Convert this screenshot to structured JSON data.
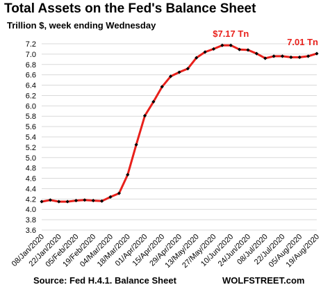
{
  "header": {
    "title": "Total Assets on the Fed's Balance Sheet",
    "subtitle": "Trillion $, week ending Wednesday"
  },
  "footer": {
    "source": "Source: Fed H.4.1. Balance Sheet",
    "brand": "WOLFSTREET.com"
  },
  "colors": {
    "line": "#e8201b",
    "marker": "#000000",
    "annotation": "#e8201b",
    "grid": "#d9d9d9",
    "text": "#000000"
  },
  "chart_data": {
    "type": "line",
    "title": "Total Assets on the Fed's Balance Sheet",
    "subtitle": "Trillion $, week ending Wednesday",
    "xlabel": "",
    "ylabel": "",
    "ylim": [
      3.6,
      7.2
    ],
    "yticks": [
      "3.6",
      "3.8",
      "4.0",
      "4.2",
      "4.4",
      "4.6",
      "4.8",
      "5.0",
      "5.2",
      "5.4",
      "5.6",
      "5.8",
      "6.0",
      "6.2",
      "6.4",
      "6.6",
      "6.8",
      "7.0",
      "7.2"
    ],
    "grid": true,
    "legend": "none",
    "x": [
      "08/Jan/2020",
      "15/Jan/2020",
      "22/Jan/2020",
      "29/Jan/2020",
      "05/Feb/2020",
      "12/Feb/2020",
      "19/Feb/2020",
      "26/Feb/2020",
      "04/Mar/2020",
      "11/Mar/2020",
      "18/Mar/2020",
      "25/Mar/2020",
      "01/Apr/2020",
      "08/Apr/2020",
      "15/Apr/2020",
      "22/Apr/2020",
      "29/Apr/2020",
      "06/May/2020",
      "13/May/2020",
      "20/May/2020",
      "27/May/2020",
      "03/Jun/2020",
      "10/Jun/2020",
      "17/Jun/2020",
      "24/Jun/2020",
      "01/Jul/2020",
      "08/Jul/2020",
      "15/Jul/2020",
      "22/Jul/2020",
      "29/Jul/2020",
      "05/Aug/2020",
      "12/Aug/2020",
      "19/Aug/2020"
    ],
    "x_tick_labels": [
      "08/Jan/2020",
      "22/Jan/2020",
      "05/Feb/2020",
      "19/Feb/2020",
      "04/Mar/2020",
      "18/Mar/2020",
      "01/Apr/2020",
      "15/Apr/2020",
      "29/Apr/2020",
      "13/May/2020",
      "27/May/2020",
      "10/Jun/2020",
      "24/Jun/2020",
      "08/Jul/2020",
      "22/Jul/2020",
      "05/Aug/2020",
      "19/Aug/2020"
    ],
    "series": [
      {
        "values": [
          4.15,
          4.18,
          4.15,
          4.15,
          4.17,
          4.18,
          4.17,
          4.16,
          4.24,
          4.31,
          4.67,
          5.25,
          5.81,
          6.08,
          6.37,
          6.57,
          6.65,
          6.72,
          6.93,
          7.04,
          7.1,
          7.17,
          7.17,
          7.09,
          7.08,
          7.01,
          6.92,
          6.96,
          6.96,
          6.94,
          6.94,
          6.96,
          7.01
        ]
      }
    ],
    "annotations": [
      {
        "text": "$7.17 Tn",
        "x": "10/Jun/2020",
        "y": 7.17
      },
      {
        "text": "7.01 Tn",
        "x": "19/Aug/2020",
        "y": 7.01
      }
    ]
  }
}
